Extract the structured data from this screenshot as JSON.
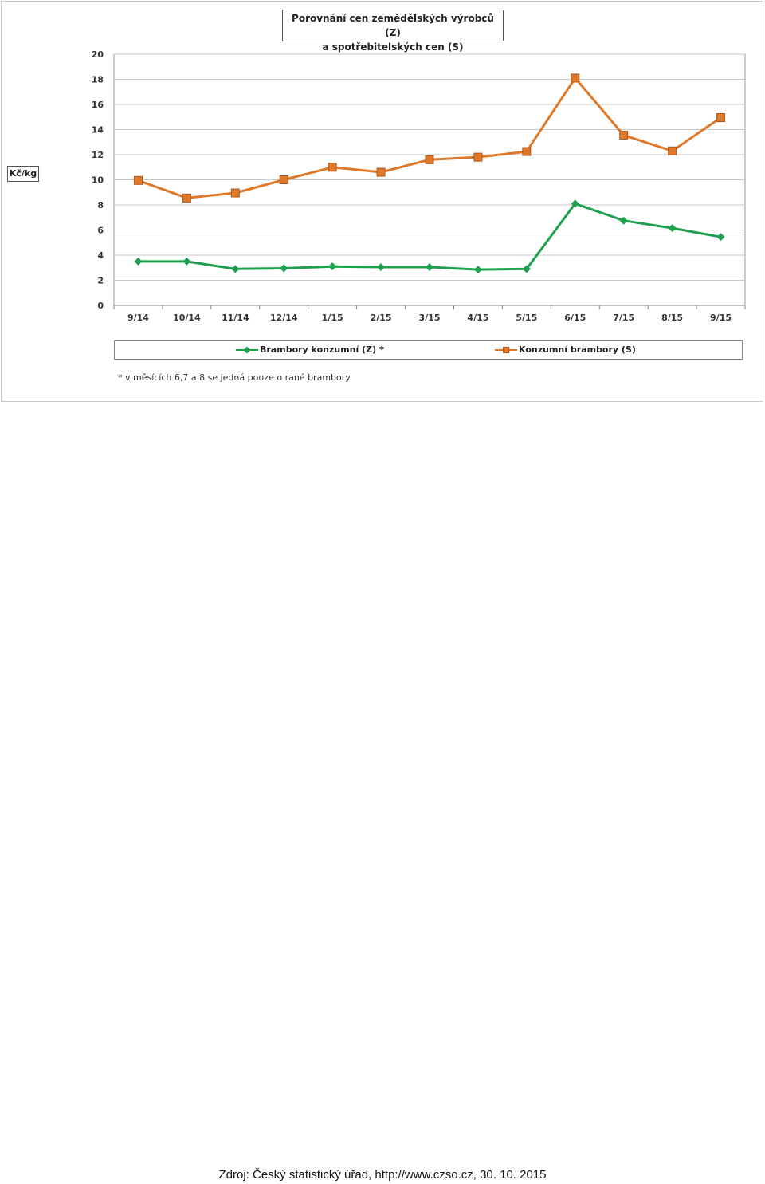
{
  "chart_data": {
    "type": "line",
    "title": "Porovnání cen zemědělských výrobců (Z)\na spotřebitelských cen (S)",
    "title_lines": [
      "Porovnání cen zemědělských výrobců (Z)",
      "a spotřebitelských cen (S)"
    ],
    "ylabel": "Kč/kg",
    "xlabel": "",
    "categories": [
      "9/14",
      "10/14",
      "11/14",
      "12/14",
      "1/15",
      "2/15",
      "3/15",
      "4/15",
      "5/15",
      "6/15",
      "7/15",
      "8/15",
      "9/15"
    ],
    "ylim": [
      0,
      20
    ],
    "yticks": [
      "0",
      "2",
      "4",
      "6",
      "8",
      "10",
      "12",
      "14",
      "16",
      "18",
      "20"
    ],
    "grid": true,
    "legend_position": "bottom",
    "series": [
      {
        "name": "Brambory konzumní (Z) *",
        "color": "#1fa04f",
        "marker": "diamond",
        "values": [
          3.5,
          3.5,
          2.9,
          2.95,
          3.1,
          3.05,
          3.05,
          2.85,
          2.9,
          8.1,
          6.75,
          6.15,
          5.45
        ]
      },
      {
        "name": "Konzumní brambory (S)",
        "color": "#e0782a",
        "marker": "square",
        "values": [
          9.95,
          8.55,
          8.95,
          10.0,
          11.0,
          10.6,
          11.6,
          11.8,
          12.25,
          18.1,
          13.55,
          12.3,
          14.95
        ]
      }
    ],
    "footnote": "* v měsících 6,7 a 8 se jedná pouze o rané brambory"
  },
  "source": "Zdroj: Český statistický úřad, http://www.czso.cz, 30. 10. 2015"
}
